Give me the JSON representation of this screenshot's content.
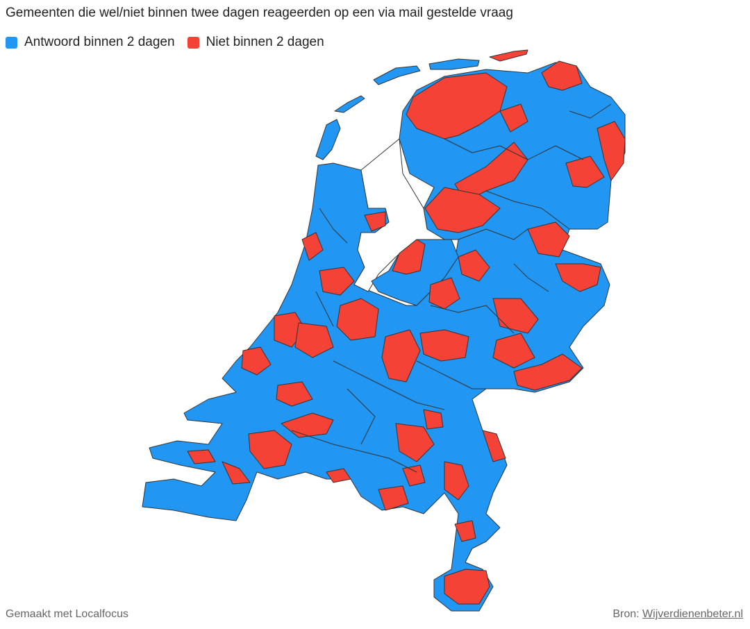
{
  "header": {
    "title": "Gemeenten die wel/niet binnen twee dagen reageerden op een via mail gestelde vraag"
  },
  "legend": {
    "items": [
      {
        "name": "Antwoord binnen 2 dagen",
        "color": "#2196f3"
      },
      {
        "name": "Niet binnen 2 dagen",
        "color": "#f44336"
      }
    ]
  },
  "footer": {
    "credit": "Gemaakt met Localfocus",
    "source_label": "Bron:",
    "source_link": "Wijverdienenbeter.nl"
  }
}
